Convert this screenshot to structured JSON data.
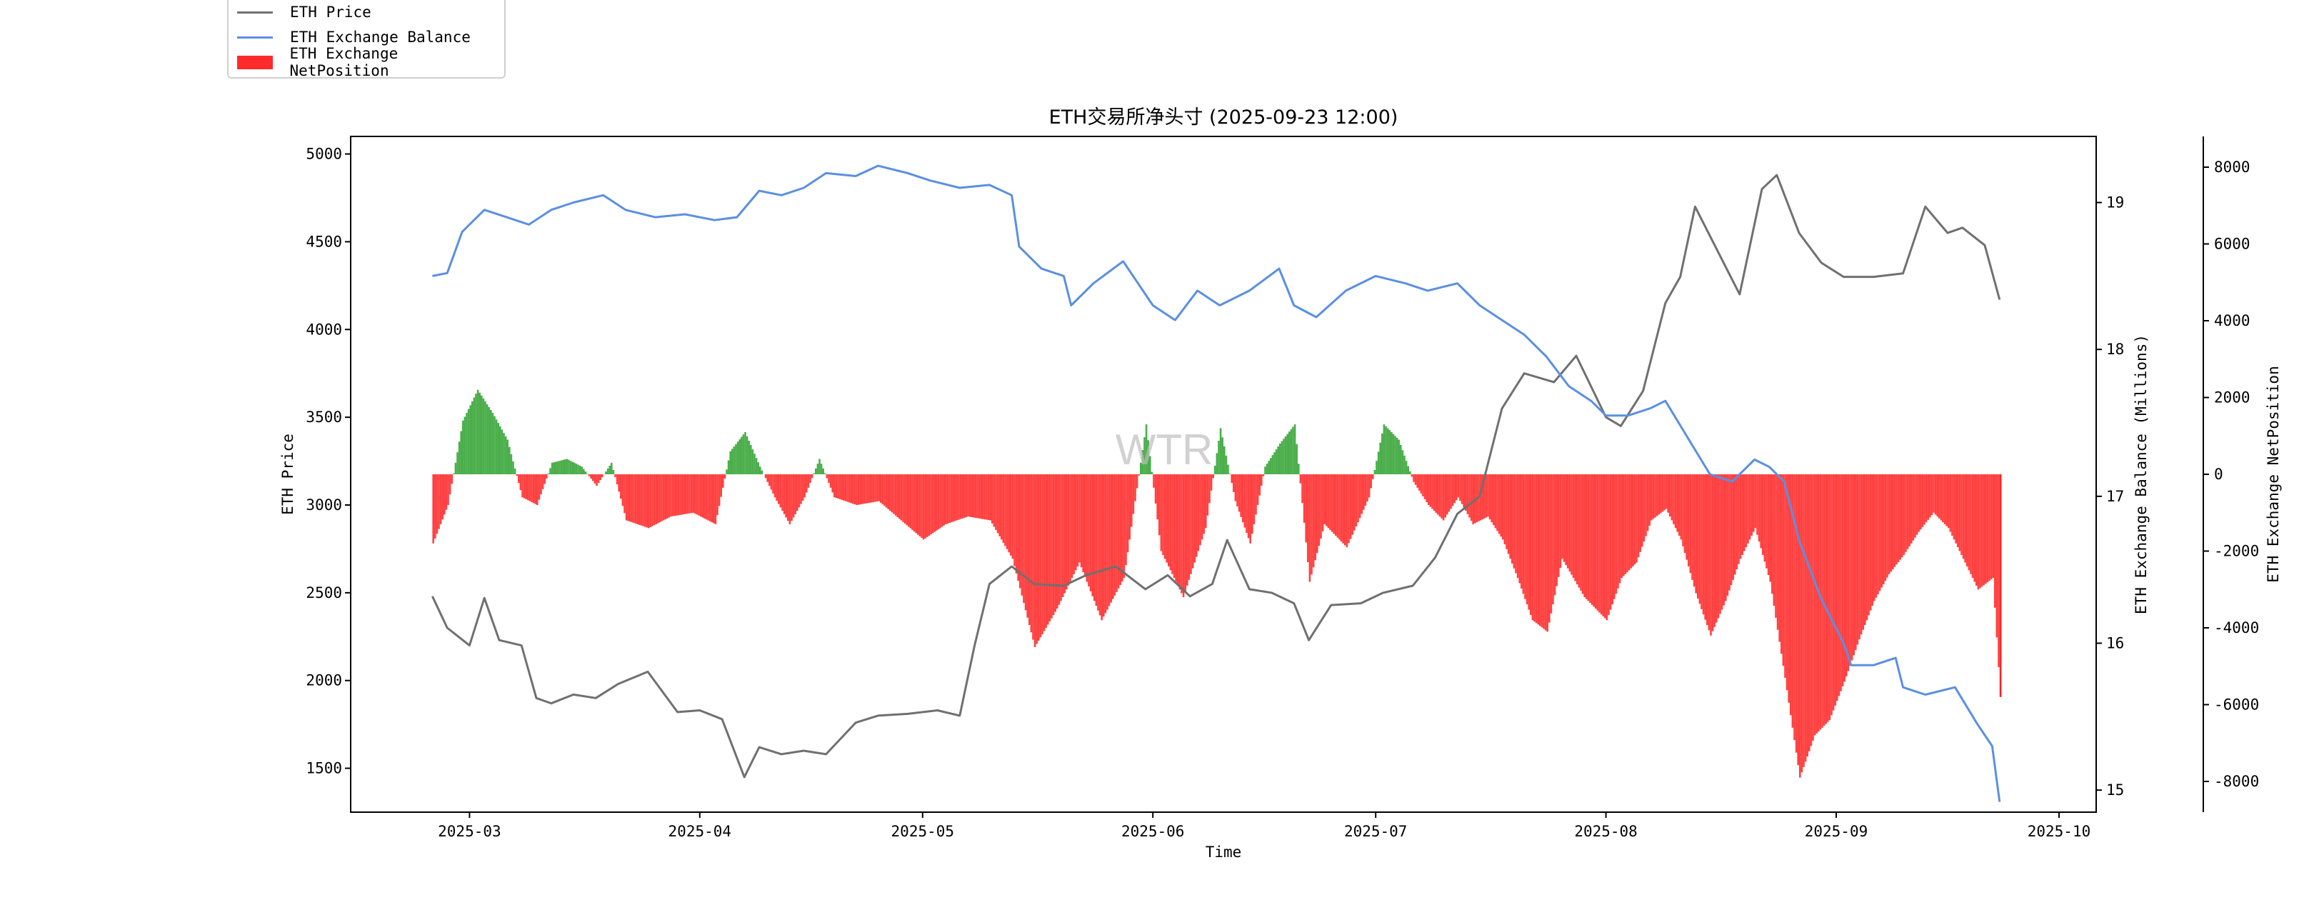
{
  "legend": {
    "items": [
      {
        "label": "ETH Price",
        "color": "#707070",
        "kind": "line"
      },
      {
        "label": "ETH Exchange Balance",
        "color": "#5b8fe2",
        "kind": "line"
      },
      {
        "label": "ETH Exchange NetPosition",
        "color": "#ff2a2a",
        "kind": "patch"
      }
    ]
  },
  "watermark": "WTR",
  "chart_data": {
    "type": "line",
    "title": "ETH交易所净头寸 (2025-09-23 12:00)",
    "xlabel": "Time",
    "ylabel_left": "ETH Price",
    "ylabel_right1": "ETH Exchange Balance (Millions)",
    "ylabel_right2": "ETH Exchange NetPosition",
    "x_ticks": [
      "2025-03",
      "2025-04",
      "2025-05",
      "2025-06",
      "2025-07",
      "2025-08",
      "2025-09",
      "2025-10"
    ],
    "x_range": [
      "2025-02-13",
      "2025-10-06"
    ],
    "y_left_range": [
      1250,
      5100
    ],
    "y_left_ticks": [
      1500,
      2000,
      2500,
      3000,
      3500,
      4000,
      4500,
      5000
    ],
    "y_right1_range": [
      14.85,
      19.45
    ],
    "y_right1_ticks": [
      15,
      16,
      17,
      18,
      19
    ],
    "y_right2_range": [
      -8800,
      8800
    ],
    "y_right2_ticks": [
      -8000,
      -6000,
      -4000,
      -2000,
      0,
      2000,
      4000,
      6000,
      8000
    ],
    "positive_color": "#2ca02c",
    "negative_color": "#ff2020",
    "series": [
      {
        "name": "ETH Price",
        "axis": "left",
        "color": "#707070",
        "points": [
          [
            "2025-02-24",
            2480
          ],
          [
            "2025-02-26",
            2300
          ],
          [
            "2025-03-01",
            2200
          ],
          [
            "2025-03-03",
            2470
          ],
          [
            "2025-03-05",
            2230
          ],
          [
            "2025-03-08",
            2200
          ],
          [
            "2025-03-10",
            1900
          ],
          [
            "2025-03-12",
            1870
          ],
          [
            "2025-03-15",
            1920
          ],
          [
            "2025-03-18",
            1900
          ],
          [
            "2025-03-21",
            1980
          ],
          [
            "2025-03-25",
            2050
          ],
          [
            "2025-03-29",
            1820
          ],
          [
            "2025-04-01",
            1830
          ],
          [
            "2025-04-04",
            1780
          ],
          [
            "2025-04-07",
            1450
          ],
          [
            "2025-04-09",
            1620
          ],
          [
            "2025-04-12",
            1580
          ],
          [
            "2025-04-15",
            1600
          ],
          [
            "2025-04-18",
            1580
          ],
          [
            "2025-04-22",
            1760
          ],
          [
            "2025-04-25",
            1800
          ],
          [
            "2025-04-29",
            1810
          ],
          [
            "2025-05-03",
            1830
          ],
          [
            "2025-05-06",
            1800
          ],
          [
            "2025-05-08",
            2200
          ],
          [
            "2025-05-10",
            2550
          ],
          [
            "2025-05-13",
            2650
          ],
          [
            "2025-05-16",
            2550
          ],
          [
            "2025-05-20",
            2540
          ],
          [
            "2025-05-23",
            2600
          ],
          [
            "2025-05-27",
            2650
          ],
          [
            "2025-05-31",
            2520
          ],
          [
            "2025-06-03",
            2600
          ],
          [
            "2025-06-06",
            2480
          ],
          [
            "2025-06-09",
            2550
          ],
          [
            "2025-06-11",
            2800
          ],
          [
            "2025-06-14",
            2520
          ],
          [
            "2025-06-17",
            2500
          ],
          [
            "2025-06-20",
            2440
          ],
          [
            "2025-06-22",
            2230
          ],
          [
            "2025-06-25",
            2430
          ],
          [
            "2025-06-29",
            2440
          ],
          [
            "2025-07-02",
            2500
          ],
          [
            "2025-07-06",
            2540
          ],
          [
            "2025-07-09",
            2700
          ],
          [
            "2025-07-12",
            2950
          ],
          [
            "2025-07-15",
            3050
          ],
          [
            "2025-07-18",
            3550
          ],
          [
            "2025-07-21",
            3750
          ],
          [
            "2025-07-25",
            3700
          ],
          [
            "2025-07-28",
            3850
          ],
          [
            "2025-08-01",
            3500
          ],
          [
            "2025-08-03",
            3450
          ],
          [
            "2025-08-06",
            3650
          ],
          [
            "2025-08-09",
            4150
          ],
          [
            "2025-08-11",
            4300
          ],
          [
            "2025-08-13",
            4700
          ],
          [
            "2025-08-16",
            4450
          ],
          [
            "2025-08-19",
            4200
          ],
          [
            "2025-08-22",
            4800
          ],
          [
            "2025-08-24",
            4880
          ],
          [
            "2025-08-27",
            4550
          ],
          [
            "2025-08-30",
            4380
          ],
          [
            "2025-09-02",
            4300
          ],
          [
            "2025-09-06",
            4300
          ],
          [
            "2025-09-10",
            4320
          ],
          [
            "2025-09-13",
            4700
          ],
          [
            "2025-09-16",
            4550
          ],
          [
            "2025-09-18",
            4580
          ],
          [
            "2025-09-21",
            4480
          ],
          [
            "2025-09-23",
            4170
          ]
        ]
      },
      {
        "name": "ETH Exchange Balance",
        "axis": "right1",
        "color": "#5b8fe2",
        "points": [
          [
            "2025-02-24",
            18.5
          ],
          [
            "2025-02-26",
            18.52
          ],
          [
            "2025-02-28",
            18.8
          ],
          [
            "2025-03-03",
            18.95
          ],
          [
            "2025-03-06",
            18.9
          ],
          [
            "2025-03-09",
            18.85
          ],
          [
            "2025-03-12",
            18.95
          ],
          [
            "2025-03-15",
            19.0
          ],
          [
            "2025-03-19",
            19.05
          ],
          [
            "2025-03-22",
            18.95
          ],
          [
            "2025-03-26",
            18.9
          ],
          [
            "2025-03-30",
            18.92
          ],
          [
            "2025-04-03",
            18.88
          ],
          [
            "2025-04-06",
            18.9
          ],
          [
            "2025-04-09",
            19.08
          ],
          [
            "2025-04-12",
            19.05
          ],
          [
            "2025-04-15",
            19.1
          ],
          [
            "2025-04-18",
            19.2
          ],
          [
            "2025-04-22",
            19.18
          ],
          [
            "2025-04-25",
            19.25
          ],
          [
            "2025-04-29",
            19.2
          ],
          [
            "2025-05-02",
            19.15
          ],
          [
            "2025-05-06",
            19.1
          ],
          [
            "2025-05-10",
            19.12
          ],
          [
            "2025-05-13",
            19.05
          ],
          [
            "2025-05-14",
            18.7
          ],
          [
            "2025-05-17",
            18.55
          ],
          [
            "2025-05-20",
            18.5
          ],
          [
            "2025-05-21",
            18.3
          ],
          [
            "2025-05-24",
            18.45
          ],
          [
            "2025-05-28",
            18.6
          ],
          [
            "2025-06-01",
            18.3
          ],
          [
            "2025-06-04",
            18.2
          ],
          [
            "2025-06-07",
            18.4
          ],
          [
            "2025-06-10",
            18.3
          ],
          [
            "2025-06-14",
            18.4
          ],
          [
            "2025-06-18",
            18.55
          ],
          [
            "2025-06-20",
            18.3
          ],
          [
            "2025-06-23",
            18.22
          ],
          [
            "2025-06-27",
            18.4
          ],
          [
            "2025-07-01",
            18.5
          ],
          [
            "2025-07-05",
            18.45
          ],
          [
            "2025-07-08",
            18.4
          ],
          [
            "2025-07-12",
            18.45
          ],
          [
            "2025-07-15",
            18.3
          ],
          [
            "2025-07-18",
            18.2
          ],
          [
            "2025-07-21",
            18.1
          ],
          [
            "2025-07-24",
            17.95
          ],
          [
            "2025-07-27",
            17.75
          ],
          [
            "2025-07-30",
            17.65
          ],
          [
            "2025-08-01",
            17.55
          ],
          [
            "2025-08-04",
            17.55
          ],
          [
            "2025-08-07",
            17.6
          ],
          [
            "2025-08-09",
            17.65
          ],
          [
            "2025-08-12",
            17.4
          ],
          [
            "2025-08-15",
            17.15
          ],
          [
            "2025-08-18",
            17.1
          ],
          [
            "2025-08-21",
            17.25
          ],
          [
            "2025-08-23",
            17.2
          ],
          [
            "2025-08-25",
            17.1
          ],
          [
            "2025-08-27",
            16.7
          ],
          [
            "2025-08-30",
            16.3
          ],
          [
            "2025-09-02",
            16.0
          ],
          [
            "2025-09-03",
            15.85
          ],
          [
            "2025-09-06",
            15.85
          ],
          [
            "2025-09-09",
            15.9
          ],
          [
            "2025-09-10",
            15.7
          ],
          [
            "2025-09-13",
            15.65
          ],
          [
            "2025-09-17",
            15.7
          ],
          [
            "2025-09-20",
            15.45
          ],
          [
            "2025-09-22",
            15.3
          ],
          [
            "2025-09-23",
            14.92
          ]
        ]
      },
      {
        "name": "ETH Exchange NetPosition",
        "axis": "right2",
        "type": "bar",
        "points": [
          [
            "2025-02-24",
            -1800
          ],
          [
            "2025-02-26",
            -800
          ],
          [
            "2025-02-28",
            1400
          ],
          [
            "2025-03-02",
            2200
          ],
          [
            "2025-03-04",
            1600
          ],
          [
            "2025-03-06",
            900
          ],
          [
            "2025-03-08",
            -600
          ],
          [
            "2025-03-10",
            -800
          ],
          [
            "2025-03-12",
            300
          ],
          [
            "2025-03-14",
            400
          ],
          [
            "2025-03-16",
            200
          ],
          [
            "2025-03-18",
            -300
          ],
          [
            "2025-03-20",
            300
          ],
          [
            "2025-03-22",
            -1200
          ],
          [
            "2025-03-25",
            -1400
          ],
          [
            "2025-03-28",
            -1100
          ],
          [
            "2025-03-31",
            -1000
          ],
          [
            "2025-04-03",
            -1300
          ],
          [
            "2025-04-05",
            600
          ],
          [
            "2025-04-07",
            1100
          ],
          [
            "2025-04-09",
            200
          ],
          [
            "2025-04-11",
            -600
          ],
          [
            "2025-04-13",
            -1300
          ],
          [
            "2025-04-15",
            -600
          ],
          [
            "2025-04-17",
            400
          ],
          [
            "2025-04-19",
            -600
          ],
          [
            "2025-04-22",
            -800
          ],
          [
            "2025-04-25",
            -700
          ],
          [
            "2025-04-28",
            -1200
          ],
          [
            "2025-05-01",
            -1700
          ],
          [
            "2025-05-04",
            -1300
          ],
          [
            "2025-05-07",
            -1100
          ],
          [
            "2025-05-10",
            -1200
          ],
          [
            "2025-05-13",
            -2200
          ],
          [
            "2025-05-16",
            -4500
          ],
          [
            "2025-05-19",
            -3500
          ],
          [
            "2025-05-22",
            -2300
          ],
          [
            "2025-05-25",
            -3800
          ],
          [
            "2025-05-28",
            -2700
          ],
          [
            "2025-05-31",
            1300
          ],
          [
            "2025-06-02",
            -2000
          ],
          [
            "2025-06-05",
            -3200
          ],
          [
            "2025-06-08",
            -1400
          ],
          [
            "2025-06-10",
            1200
          ],
          [
            "2025-06-12",
            -700
          ],
          [
            "2025-06-14",
            -1800
          ],
          [
            "2025-06-16",
            200
          ],
          [
            "2025-06-18",
            800
          ],
          [
            "2025-06-20",
            1300
          ],
          [
            "2025-06-22",
            -2800
          ],
          [
            "2025-06-24",
            -1300
          ],
          [
            "2025-06-27",
            -1900
          ],
          [
            "2025-06-30",
            -600
          ],
          [
            "2025-07-02",
            1300
          ],
          [
            "2025-07-04",
            900
          ],
          [
            "2025-07-06",
            -200
          ],
          [
            "2025-07-08",
            -800
          ],
          [
            "2025-07-10",
            -1200
          ],
          [
            "2025-07-12",
            -600
          ],
          [
            "2025-07-14",
            -1300
          ],
          [
            "2025-07-16",
            -1100
          ],
          [
            "2025-07-18",
            -1700
          ],
          [
            "2025-07-20",
            -2700
          ],
          [
            "2025-07-22",
            -3800
          ],
          [
            "2025-07-24",
            -4100
          ],
          [
            "2025-07-26",
            -2200
          ],
          [
            "2025-07-29",
            -3200
          ],
          [
            "2025-08-01",
            -3800
          ],
          [
            "2025-08-03",
            -2700
          ],
          [
            "2025-08-05",
            -2300
          ],
          [
            "2025-08-07",
            -1200
          ],
          [
            "2025-08-09",
            -900
          ],
          [
            "2025-08-11",
            -1700
          ],
          [
            "2025-08-13",
            -3100
          ],
          [
            "2025-08-15",
            -4200
          ],
          [
            "2025-08-17",
            -3300
          ],
          [
            "2025-08-19",
            -2200
          ],
          [
            "2025-08-21",
            -1400
          ],
          [
            "2025-08-23",
            -2800
          ],
          [
            "2025-08-25",
            -5300
          ],
          [
            "2025-08-27",
            -7900
          ],
          [
            "2025-08-29",
            -6800
          ],
          [
            "2025-08-31",
            -6400
          ],
          [
            "2025-09-02",
            -5400
          ],
          [
            "2025-09-04",
            -4300
          ],
          [
            "2025-09-06",
            -3300
          ],
          [
            "2025-09-08",
            -2600
          ],
          [
            "2025-09-10",
            -2100
          ],
          [
            "2025-09-12",
            -1500
          ],
          [
            "2025-09-14",
            -1000
          ],
          [
            "2025-09-16",
            -1400
          ],
          [
            "2025-09-18",
            -2200
          ],
          [
            "2025-09-20",
            -3000
          ],
          [
            "2025-09-22",
            -2700
          ],
          [
            "2025-09-23",
            -5800
          ]
        ]
      }
    ]
  }
}
